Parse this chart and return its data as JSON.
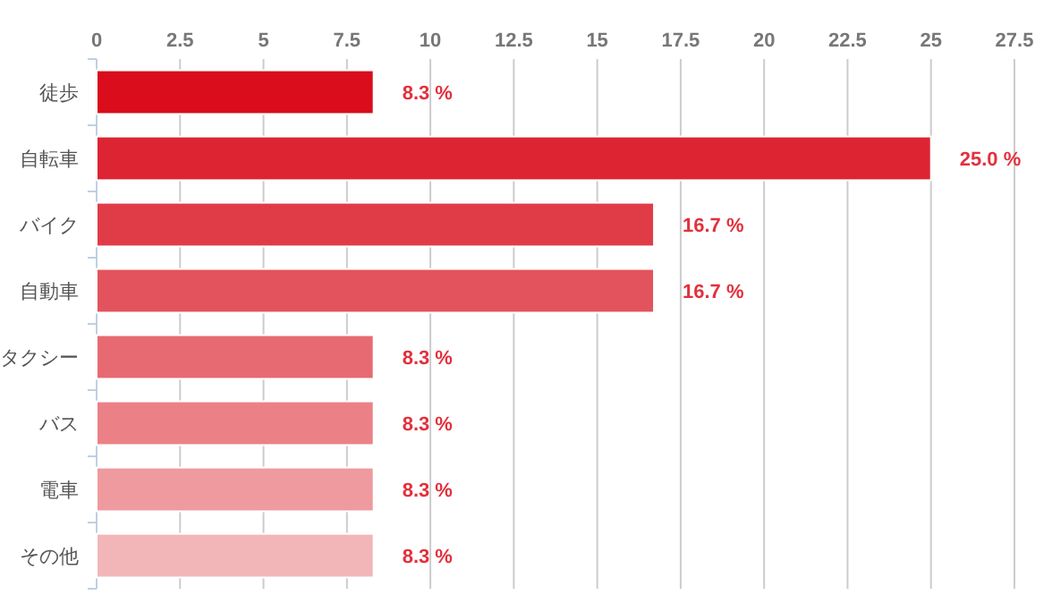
{
  "chart_data": {
    "type": "bar",
    "orientation": "horizontal",
    "categories": [
      "徒歩",
      "自転車",
      "バイク",
      "自動車",
      "タクシー",
      "バス",
      "電車",
      "その他"
    ],
    "values": [
      8.3,
      25.0,
      16.7,
      16.7,
      8.3,
      8.3,
      8.3,
      8.3
    ],
    "colors": [
      "#d90d1b",
      "#dd2432",
      "#e03c48",
      "#e3535d",
      "#e76a72",
      "#eb8187",
      "#ef9a9e",
      "#f2b6b8"
    ],
    "value_labels": [
      "8.3 %",
      "25.0 %",
      "16.7 %",
      "16.7 %",
      "8.3 %",
      "8.3 %",
      "8.3 %",
      "8.3 %"
    ],
    "xlim": [
      0,
      27.5
    ],
    "xticks": [
      0,
      2.5,
      5,
      7.5,
      10,
      12.5,
      15,
      17.5,
      20,
      22.5,
      25,
      27.5
    ],
    "grid": "x"
  }
}
